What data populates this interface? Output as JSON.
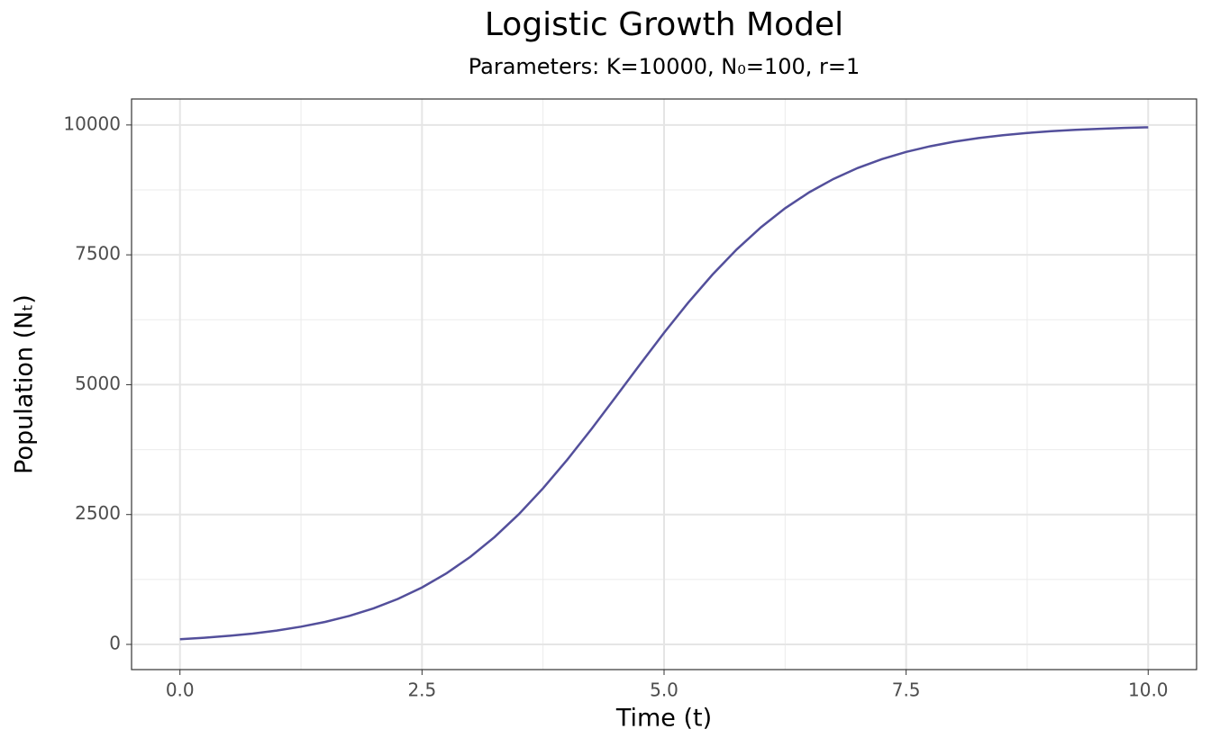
{
  "chart_data": {
    "type": "line",
    "title": "Logistic Growth Model",
    "subtitle": "Parameters: K=10000, N₀=100, r=1",
    "x_label": "Time (t)",
    "y_label": "Population (Nₜ)",
    "x": [
      0,
      0.25,
      0.5,
      0.75,
      1,
      1.25,
      1.5,
      1.75,
      2,
      2.25,
      2.5,
      2.75,
      3,
      3.25,
      3.5,
      3.75,
      4,
      4.25,
      4.5,
      4.75,
      5,
      5.25,
      5.5,
      5.75,
      6,
      6.25,
      6.5,
      6.75,
      7,
      7.25,
      7.5,
      7.75,
      8,
      8.25,
      8.5,
      8.75,
      9,
      9.25,
      9.5,
      9.75,
      10
    ],
    "values": [
      100,
      128,
      164,
      209,
      267,
      341,
      433,
      549,
      695,
      875,
      1096,
      1365,
      1687,
      2067,
      2507,
      3005,
      3555,
      4146,
      4762,
      5386,
      5999,
      6581,
      7119,
      7604,
      8029,
      8396,
      8705,
      8961,
      9172,
      9343,
      9481,
      9591,
      9679,
      9748,
      9803,
      9846,
      9880,
      9906,
      9926,
      9943,
      9955
    ],
    "color": "#534f9b",
    "xlim": [
      -0.5,
      10.5
    ],
    "ylim": [
      -485,
      10500
    ],
    "xticks": [
      {
        "value": 0,
        "label": "0.0"
      },
      {
        "value": 2.5,
        "label": "2.5"
      },
      {
        "value": 5,
        "label": "5.0"
      },
      {
        "value": 7.5,
        "label": "7.5"
      },
      {
        "value": 10,
        "label": "10.0"
      }
    ],
    "yticks": [
      0,
      2500,
      5000,
      7500,
      10000
    ],
    "grid": true
  }
}
